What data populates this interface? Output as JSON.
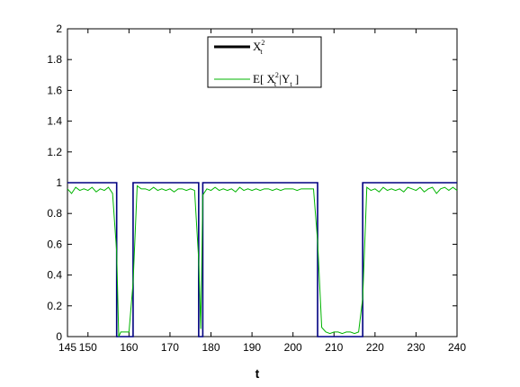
{
  "chart_data": {
    "type": "line",
    "title": "",
    "xlabel": "t",
    "ylabel": "",
    "xlim": [
      145,
      240
    ],
    "ylim": [
      0,
      2
    ],
    "xticks": [
      145,
      150,
      160,
      170,
      180,
      190,
      200,
      210,
      220,
      230,
      240
    ],
    "yticks": [
      0,
      0.2,
      0.4,
      0.6,
      0.8,
      1,
      1.2,
      1.4,
      1.6,
      1.8,
      2
    ],
    "grid": false,
    "legend_position": "top-right",
    "series": [
      {
        "name": "X_t^2",
        "legend_main": "X",
        "legend_sub": "t",
        "legend_sup": "2",
        "color": "#000080",
        "points": [
          [
            145,
            1
          ],
          [
            157,
            1
          ],
          [
            157,
            0
          ],
          [
            161,
            0
          ],
          [
            161,
            1
          ],
          [
            177,
            1
          ],
          [
            177,
            0
          ],
          [
            178,
            0
          ],
          [
            178,
            1
          ],
          [
            206,
            1
          ],
          [
            206,
            0
          ],
          [
            217,
            0
          ],
          [
            217,
            1
          ],
          [
            240,
            1
          ]
        ]
      },
      {
        "name": "E[ X_t^2 |Y_t ]",
        "legend_parts": [
          "E[ X",
          "2",
          "t",
          " |Y",
          "t",
          " ]"
        ],
        "color": "#00b400",
        "points": [
          [
            145,
            0.96
          ],
          [
            146,
            0.93
          ],
          [
            147,
            0.97
          ],
          [
            148,
            0.95
          ],
          [
            149,
            0.96
          ],
          [
            150,
            0.95
          ],
          [
            151,
            0.97
          ],
          [
            152,
            0.94
          ],
          [
            153,
            0.96
          ],
          [
            154,
            0.95
          ],
          [
            155,
            0.97
          ],
          [
            156,
            0.93
          ],
          [
            157,
            0.55
          ],
          [
            157.5,
            0.0
          ],
          [
            158,
            0.03
          ],
          [
            159,
            0.03
          ],
          [
            160,
            0.03
          ],
          [
            161,
            0.35
          ],
          [
            162,
            0.98
          ],
          [
            163,
            0.96
          ],
          [
            164,
            0.96
          ],
          [
            165,
            0.95
          ],
          [
            166,
            0.97
          ],
          [
            167,
            0.95
          ],
          [
            168,
            0.96
          ],
          [
            169,
            0.95
          ],
          [
            170,
            0.96
          ],
          [
            171,
            0.94
          ],
          [
            172,
            0.96
          ],
          [
            173,
            0.96
          ],
          [
            174,
            0.95
          ],
          [
            175,
            0.96
          ],
          [
            176,
            0.95
          ],
          [
            177,
            0.5
          ],
          [
            177.5,
            0.05
          ],
          [
            178,
            0.92
          ],
          [
            179,
            0.96
          ],
          [
            180,
            0.95
          ],
          [
            181,
            0.97
          ],
          [
            182,
            0.95
          ],
          [
            183,
            0.96
          ],
          [
            184,
            0.95
          ],
          [
            185,
            0.96
          ],
          [
            186,
            0.94
          ],
          [
            187,
            0.97
          ],
          [
            188,
            0.95
          ],
          [
            189,
            0.96
          ],
          [
            190,
            0.95
          ],
          [
            191,
            0.96
          ],
          [
            192,
            0.95
          ],
          [
            193,
            0.96
          ],
          [
            194,
            0.96
          ],
          [
            195,
            0.95
          ],
          [
            196,
            0.96
          ],
          [
            197,
            0.95
          ],
          [
            198,
            0.96
          ],
          [
            199,
            0.96
          ],
          [
            200,
            0.96
          ],
          [
            201,
            0.95
          ],
          [
            202,
            0.96
          ],
          [
            203,
            0.96
          ],
          [
            204,
            0.96
          ],
          [
            205,
            0.96
          ],
          [
            206,
            0.62
          ],
          [
            207,
            0.06
          ],
          [
            208,
            0.03
          ],
          [
            209,
            0.02
          ],
          [
            210,
            0.03
          ],
          [
            211,
            0.03
          ],
          [
            212,
            0.02
          ],
          [
            213,
            0.03
          ],
          [
            214,
            0.03
          ],
          [
            215,
            0.02
          ],
          [
            216,
            0.03
          ],
          [
            217,
            0.25
          ],
          [
            218,
            0.97
          ],
          [
            219,
            0.95
          ],
          [
            220,
            0.96
          ],
          [
            221,
            0.94
          ],
          [
            222,
            0.97
          ],
          [
            223,
            0.95
          ],
          [
            224,
            0.96
          ],
          [
            225,
            0.95
          ],
          [
            226,
            0.96
          ],
          [
            227,
            0.94
          ],
          [
            228,
            0.97
          ],
          [
            229,
            0.96
          ],
          [
            230,
            0.95
          ],
          [
            231,
            0.97
          ],
          [
            232,
            0.94
          ],
          [
            233,
            0.96
          ],
          [
            234,
            0.97
          ],
          [
            235,
            0.93
          ],
          [
            236,
            0.96
          ],
          [
            237,
            0.97
          ],
          [
            238,
            0.95
          ],
          [
            239,
            0.97
          ],
          [
            240,
            0.95
          ]
        ]
      }
    ]
  }
}
